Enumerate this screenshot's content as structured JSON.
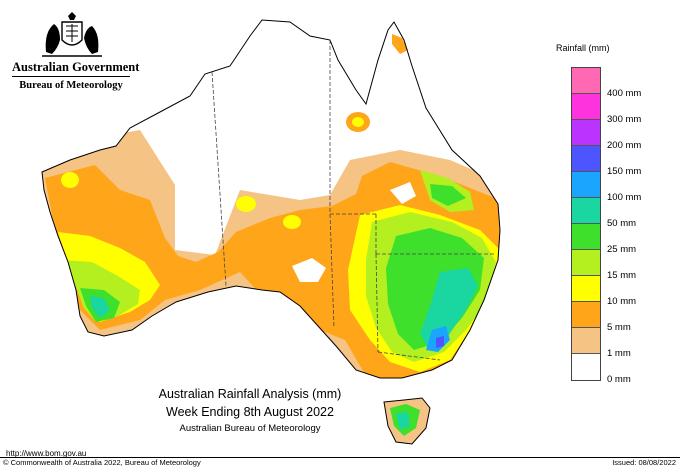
{
  "header": {
    "government": "Australian Government",
    "agency": "Bureau of Meteorology"
  },
  "legend": {
    "title": "Rainfall (mm)",
    "classes": [
      {
        "label": "",
        "color": "#ff69b4"
      },
      {
        "label": "400 mm",
        "color": "#ff33dd"
      },
      {
        "label": "300 mm",
        "color": "#bb33ff"
      },
      {
        "label": "200 mm",
        "color": "#4d55ff"
      },
      {
        "label": "150 mm",
        "color": "#1aa6ff"
      },
      {
        "label": "100 mm",
        "color": "#1ad6a0"
      },
      {
        "label": "50 mm",
        "color": "#3ee02c"
      },
      {
        "label": "25 mm",
        "color": "#b4f020"
      },
      {
        "label": "15 mm",
        "color": "#ffff00"
      },
      {
        "label": "10 mm",
        "color": "#ffa51a"
      },
      {
        "label": "5 mm",
        "color": "#f5c383"
      },
      {
        "label": "1 mm",
        "color": "#ffffff"
      },
      {
        "label": "0 mm",
        "color": ""
      }
    ]
  },
  "caption": {
    "line1": "Australian Rainfall Analysis (mm)",
    "line2": "Week Ending 8th August 2022",
    "line3": "Australian Bureau of Meteorology"
  },
  "footer": {
    "url": "http://www.bom.gov.au",
    "copyright": "© Commonwealth of Australia 2022, Bureau of Meteorology",
    "issued": "Issued: 08/08/2022"
  },
  "map": {
    "region": "Australia",
    "colors": {
      "outline": "#000000",
      "state_border": "#444444",
      "c0": "#ffffff",
      "c1": "#f5c383",
      "c5": "#ffa51a",
      "c10": "#ffff00",
      "c15": "#b4f020",
      "c25": "#3ee02c",
      "c50": "#1ad6a0",
      "c100": "#1aa6ff",
      "c150": "#4d55ff"
    }
  }
}
